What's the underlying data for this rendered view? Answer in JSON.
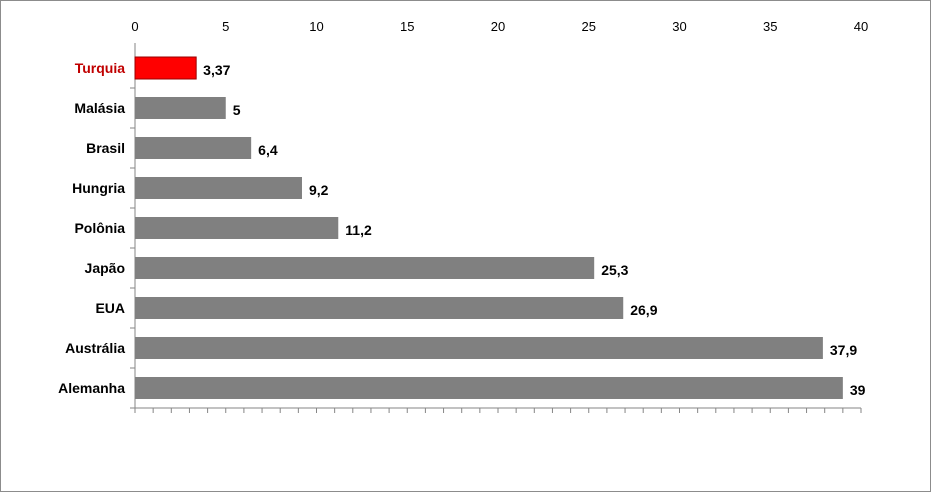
{
  "chart_data": {
    "type": "bar",
    "orientation": "horizontal",
    "categories": [
      "Turquia",
      "Malásia",
      "Brasil",
      "Hungria",
      "Polônia",
      "Japão",
      "EUA",
      "Austrália",
      "Alemanha"
    ],
    "values": [
      3.37,
      5,
      6.4,
      9.2,
      11.2,
      25.3,
      26.9,
      37.9,
      39
    ],
    "value_labels": [
      "3,37",
      "5",
      "6,4",
      "9,2",
      "11,2",
      "25,3",
      "26,9",
      "37,9",
      "39"
    ],
    "x_ticks": [
      "0",
      "5",
      "10",
      "15",
      "20",
      "25",
      "30",
      "35",
      "40"
    ],
    "xlim": [
      0,
      40
    ],
    "x_axis_position": "top",
    "grid": false,
    "legend": "none",
    "highlight_category": "Turquia",
    "colors": {
      "bar": "#808080",
      "highlight_bar": "#ff0000",
      "highlight_label": "#c00000",
      "axis": "#868686",
      "text": "#000000"
    }
  }
}
